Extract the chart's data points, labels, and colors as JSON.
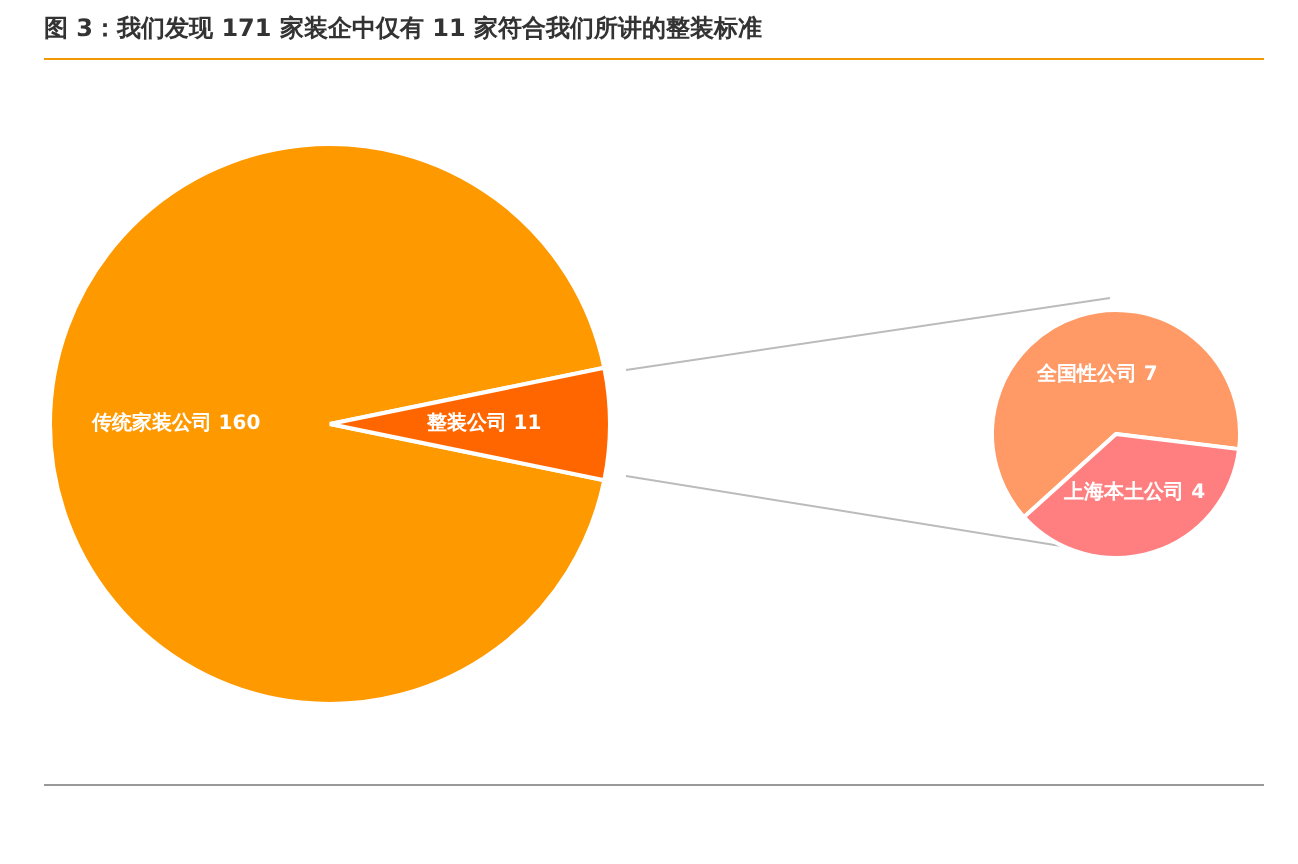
{
  "chart_data": [
    {
      "type": "pie",
      "title": "图 3：我们发现 171 家装企中仅有 11 家符合我们所讲的整装标准",
      "categories": [
        "传统家装公司",
        "整装公司"
      ],
      "values": [
        160,
        11
      ],
      "colors": [
        "#ff9900",
        "#ff6600"
      ],
      "data_labels": true
    },
    {
      "type": "pie",
      "categories": [
        "全国性公司",
        "上海本土公司"
      ],
      "values": [
        7,
        4
      ],
      "colors": [
        "#ff9966",
        "#ff7f80"
      ],
      "data_labels": true
    }
  ]
}
